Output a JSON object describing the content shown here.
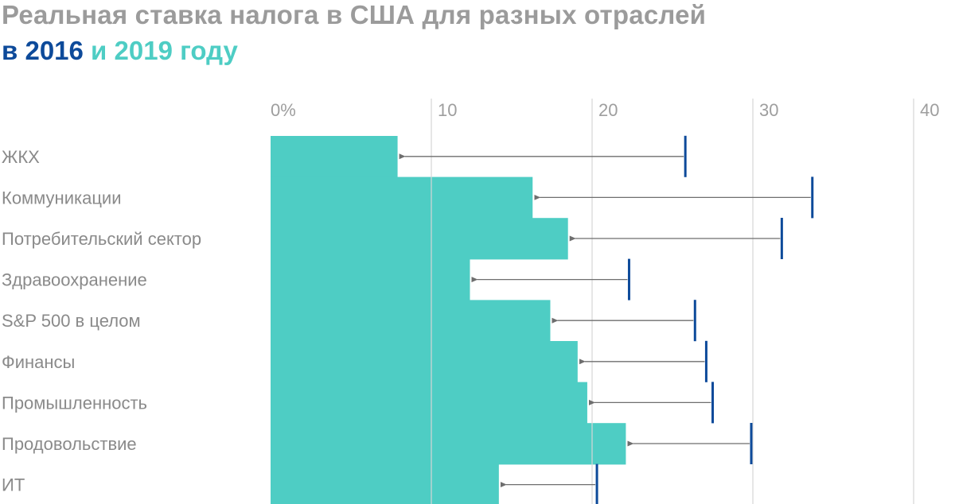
{
  "title": {
    "line1": "Реальная ставка налога в США для разных отраслей",
    "prefix": "в ",
    "year_a": "2016",
    "connector": " и ",
    "year_b": "2019 году"
  },
  "colors": {
    "title_gray": "#9b9b9b",
    "series_2016": "#0d4a9a",
    "series_2019": "#4ecdc4",
    "grid": "#d6d6d6",
    "arrow": "#6e6e6e",
    "label": "#8a8a8a"
  },
  "chart_data": {
    "type": "bar",
    "orientation": "horizontal",
    "title": "Реальная ставка налога в США для разных отраслей в 2016 и 2019 году",
    "xlim": [
      0,
      40
    ],
    "x_ticks": [
      "0%",
      "10",
      "20",
      "30",
      "40"
    ],
    "x_tick_values": [
      0,
      10,
      20,
      30,
      40
    ],
    "categories": [
      "ЖКХ",
      "Коммуникации",
      "Потребительский сектор",
      "Здравоохранение",
      "S&P 500 в целом",
      "Финансы",
      "Промышленность",
      "Продовольствие",
      "ИТ"
    ],
    "series": [
      {
        "name": "2016",
        "mark": "tick",
        "values": [
          25.8,
          33.7,
          31.8,
          22.3,
          26.4,
          27.1,
          27.5,
          29.9,
          20.3
        ]
      },
      {
        "name": "2019",
        "mark": "bar",
        "values": [
          7.9,
          16.3,
          18.5,
          12.4,
          17.4,
          19.1,
          19.7,
          22.1,
          14.2
        ]
      }
    ],
    "arrows": "from 2016 value to 2019 value",
    "grid": true
  }
}
